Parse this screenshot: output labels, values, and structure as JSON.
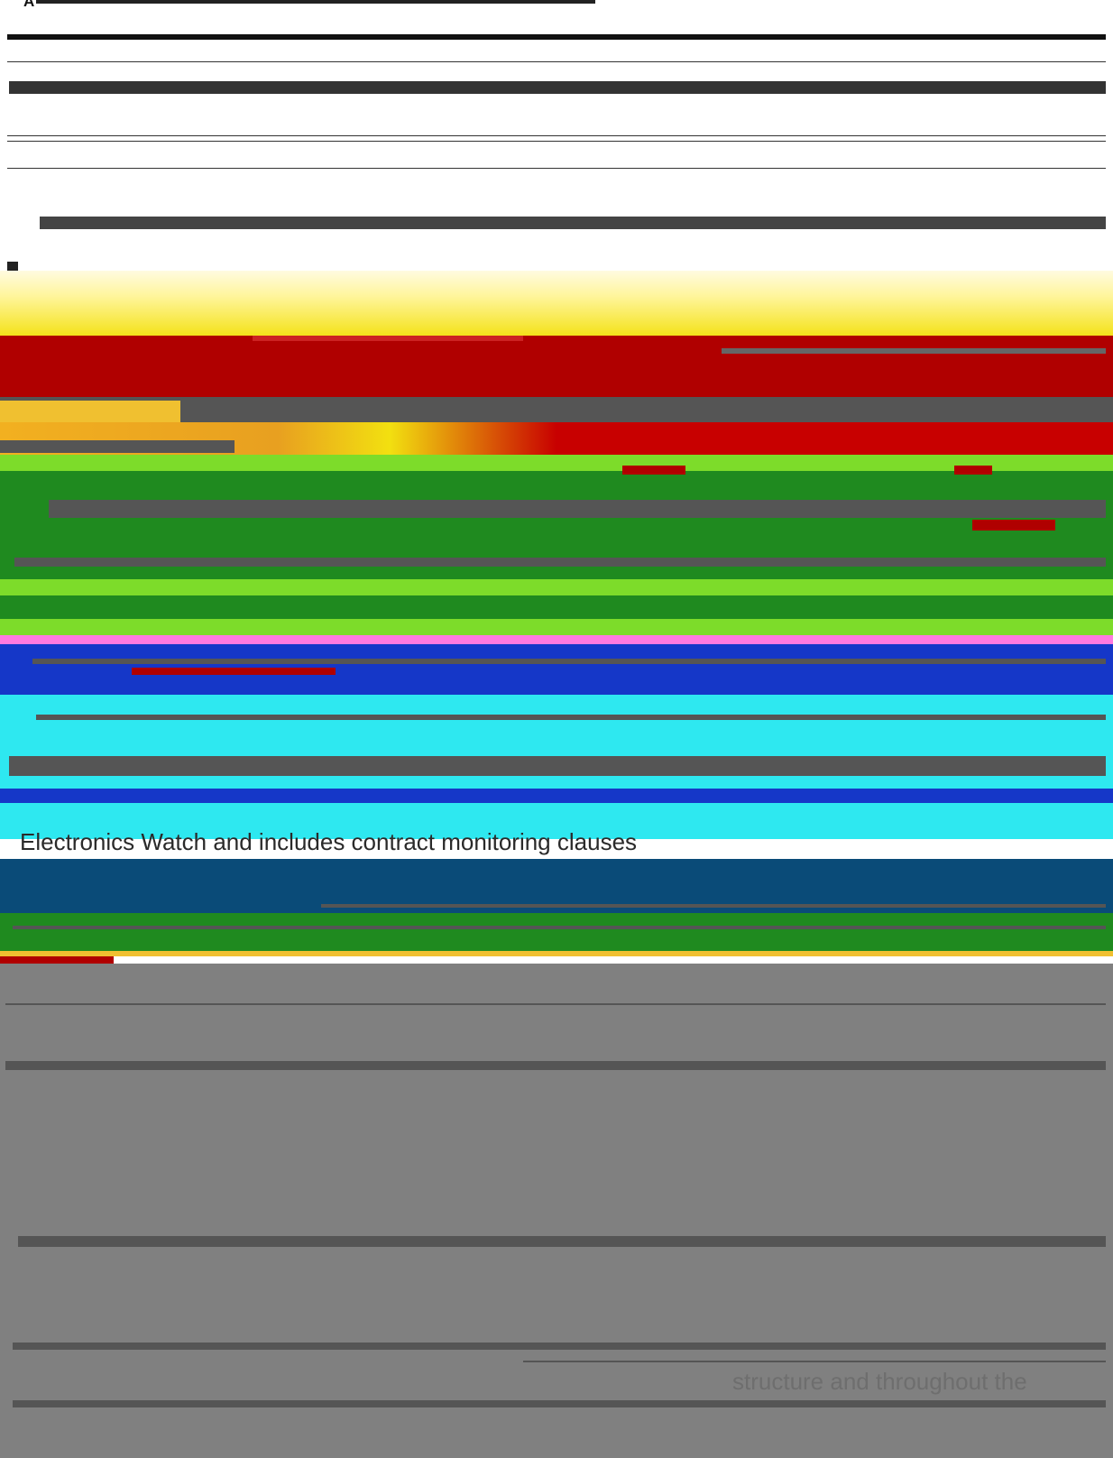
{
  "header": {
    "title": "A"
  },
  "glitch_text": {
    "line_1": "Electronics Watch and includes contract monitoring clauses",
    "line_2": "structure and throughout the"
  },
  "colors": {
    "background": "#ffffff",
    "yellow_band": "#f4e21a",
    "red_band": "#b00000",
    "dark_bar": "#555555",
    "green_band": "#1f8a1f",
    "lime_band": "#7ddc2a",
    "blue_band": "#1537c8",
    "cyan_band": "#2ee8f0",
    "navy_band": "#0a4b78",
    "gray_band": "#808080"
  }
}
